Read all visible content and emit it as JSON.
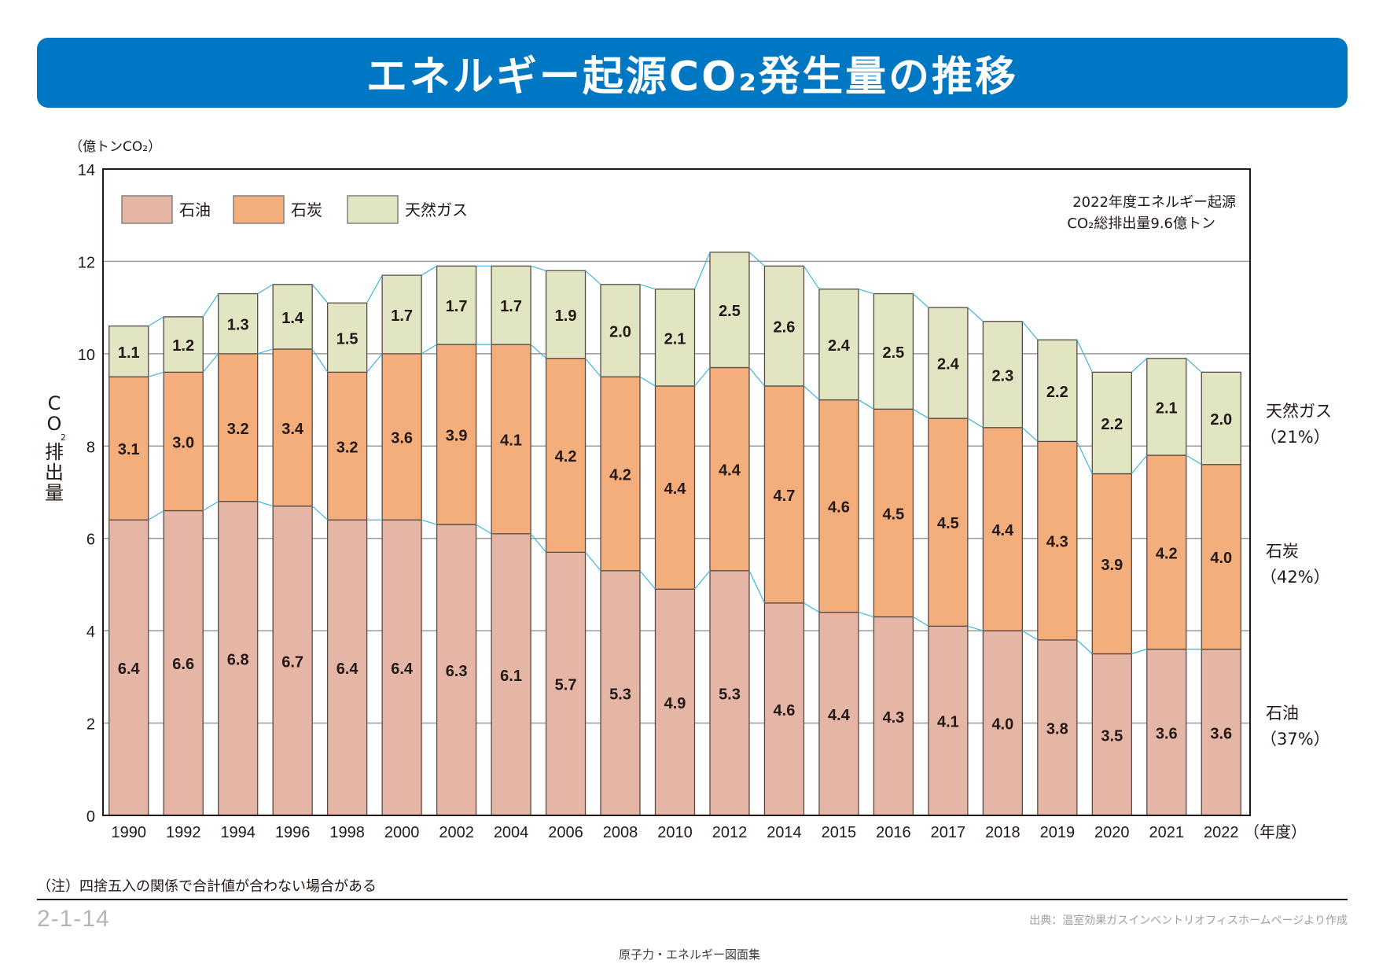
{
  "page": {
    "title": "エネルギー起源CO₂発生量の推移",
    "unit": "（億トンCO₂）",
    "ylabel_chars": [
      "C",
      "O",
      "排",
      "出",
      "量"
    ],
    "ylabel_sub": "2",
    "note": "（注）四捨五入の関係で合計値が合わない場合がある",
    "page_number": "2-1-14",
    "source": "出典：温室効果ガスインベントリオフィスホームページより作成",
    "footer": "原子力・エネルギー図面集",
    "annotation_line1": "2022年度エネルギー起源",
    "annotation_line2": "CO₂総排出量9.6億トン",
    "xunit": "（年度）"
  },
  "chart_data": {
    "type": "bar",
    "stacked": true,
    "title": "エネルギー起源CO₂発生量の推移",
    "xlabel": "（年度）",
    "ylabel": "CO₂排出量（億トンCO₂）",
    "ylim": [
      0,
      14
    ],
    "yticks": [
      0,
      2,
      4,
      6,
      8,
      10,
      12,
      14
    ],
    "grid": true,
    "legend_position": "top-left",
    "categories": [
      "1990",
      "1992",
      "1994",
      "1996",
      "1998",
      "2000",
      "2002",
      "2004",
      "2006",
      "2008",
      "2010",
      "2012",
      "2014",
      "2015",
      "2016",
      "2017",
      "2018",
      "2019",
      "2020",
      "2021",
      "2022"
    ],
    "series": [
      {
        "name": "石油",
        "color": "#e5b5a6",
        "values": [
          6.4,
          6.6,
          6.8,
          6.7,
          6.4,
          6.4,
          6.3,
          6.1,
          5.7,
          5.3,
          4.9,
          5.3,
          4.6,
          4.4,
          4.3,
          4.1,
          4.0,
          3.8,
          3.5,
          3.6,
          3.6
        ],
        "share_label": "石油",
        "share": "（37%）"
      },
      {
        "name": "石炭",
        "color": "#f3ae7c",
        "values": [
          3.1,
          3.0,
          3.2,
          3.4,
          3.2,
          3.6,
          3.9,
          4.1,
          4.2,
          4.2,
          4.4,
          4.4,
          4.7,
          4.6,
          4.5,
          4.5,
          4.4,
          4.3,
          3.9,
          4.2,
          4.0
        ],
        "share_label": "石炭",
        "share": "（42%）"
      },
      {
        "name": "天然ガス",
        "color": "#e1e5c2",
        "values": [
          1.1,
          1.2,
          1.3,
          1.4,
          1.5,
          1.7,
          1.7,
          1.7,
          1.9,
          2.0,
          2.1,
          2.5,
          2.6,
          2.4,
          2.5,
          2.4,
          2.3,
          2.2,
          2.2,
          2.1,
          2.0
        ],
        "share_label": "天然ガス",
        "share": "（21%）"
      }
    ],
    "connector_color": "#3eb6d8"
  }
}
